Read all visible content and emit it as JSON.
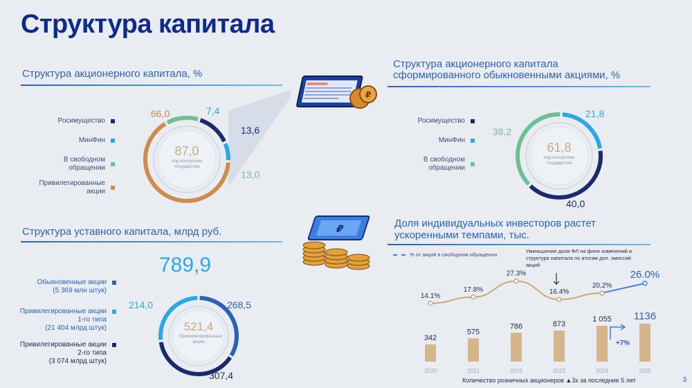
{
  "title": "Структура капитала",
  "page_number": "3",
  "colors": {
    "rosimushchestvo": "#1a2a6c",
    "minfin": "#2aa8e8",
    "free_float": "#6dbf97",
    "preferred": "#d08a4a",
    "ordinary": "#2a63b3",
    "pref1": "#2aa8e8",
    "pref2": "#1a2a6c",
    "trend_line": "#c9a97a",
    "trend_blue": "#3f7de0",
    "bars": "#d5b58b"
  },
  "sections": {
    "shareholder_capital": "Структура акционерного капитала, %",
    "ordinary_capital_line1": "Структура акционерного капитала",
    "ordinary_capital_line2": "сформированного обыкновенными акциями, %",
    "authorized_capital": "Структура уставного капитала, млрд руб.",
    "retail_line1": "Доля индивидуальных инвесторов растет",
    "retail_line2": "ускоренными темпами, тыс."
  },
  "chart_data": [
    {
      "type": "pie",
      "title": "Структура акционерного капитала, %",
      "legend": [
        "Росимущество",
        "МинФин",
        "В свободном обращении",
        "Привилегированные акции"
      ],
      "slices": [
        {
          "name": "Росимущество",
          "value": 13.6,
          "label": "13,6"
        },
        {
          "name": "МинФин",
          "value": 7.4,
          "label": "7,4"
        },
        {
          "name": "Привилегированные акции",
          "value": 66.0,
          "label": "66,0"
        },
        {
          "name": "В свободном обращении",
          "value": 13.0,
          "label": "13,0"
        }
      ],
      "center_value": "87,0",
      "center_caption": "под контролем государства"
    },
    {
      "type": "pie",
      "title": "Структура акционерного капитала сформированного обыкновенными акциями, %",
      "legend": [
        "Росимущество",
        "МинФин",
        "В свободном обращении"
      ],
      "slices": [
        {
          "name": "МинФин",
          "value": 21.8,
          "label": "21,8"
        },
        {
          "name": "Росимущество",
          "value": 40.0,
          "label": "40,0"
        },
        {
          "name": "В свободном обращении",
          "value": 38.2,
          "label": "38,2"
        }
      ],
      "center_value": "61,8",
      "center_caption": "под контролем государства"
    },
    {
      "type": "pie",
      "title": "Структура уставного капитала, млрд руб.",
      "total": "789,9",
      "legend": [
        {
          "name": "Обыкновенные акции",
          "sub": "(5 369 млн штук)"
        },
        {
          "name": "Привилегированные акции 1-го типа",
          "sub": "(21 404 млрд штук)"
        },
        {
          "name": "Привилегированные акции 2-го типа",
          "sub": "(3 074 млрд штук)"
        }
      ],
      "slices": [
        {
          "name": "Обыкновенные акции",
          "value": 268.5,
          "label": "268,5"
        },
        {
          "name": "Привилегированные акции 2-го типа",
          "value": 307.4,
          "label": "307,4"
        },
        {
          "name": "Привилегированные акции 1-го типа",
          "value": 214.0,
          "label": "214,0"
        }
      ],
      "center_value": "521,4",
      "center_caption": "Привилегированные акции"
    },
    {
      "type": "bar",
      "title": "Доля индивидуальных инвесторов растет ускоренными темпами, тыс.",
      "categories": [
        "2020",
        "2021",
        "2022",
        "2023",
        "2024",
        "2025"
      ],
      "bar_values": [
        342,
        575,
        786,
        873,
        1055,
        1136
      ],
      "bar_labels": [
        "342",
        "575",
        "786",
        "873",
        "1 055",
        "1136"
      ],
      "bar_caption": "Количество розничных акционеров ▲3х за последние 5 лет",
      "line_legend": "% от акций в свободном обращении",
      "line_values": [
        14.1,
        17.8,
        27.3,
        16.4,
        20.2,
        26.0
      ],
      "line_labels": [
        "14.1%",
        "17.8%",
        "27.3%",
        "16.4%",
        "20,2%",
        "26.0%"
      ],
      "annotation": "Уменьшение доли ФЛ на фоне изменений в структуре капитала по итогам доп. эмиссий акций",
      "growth_label": "+7%"
    }
  ]
}
